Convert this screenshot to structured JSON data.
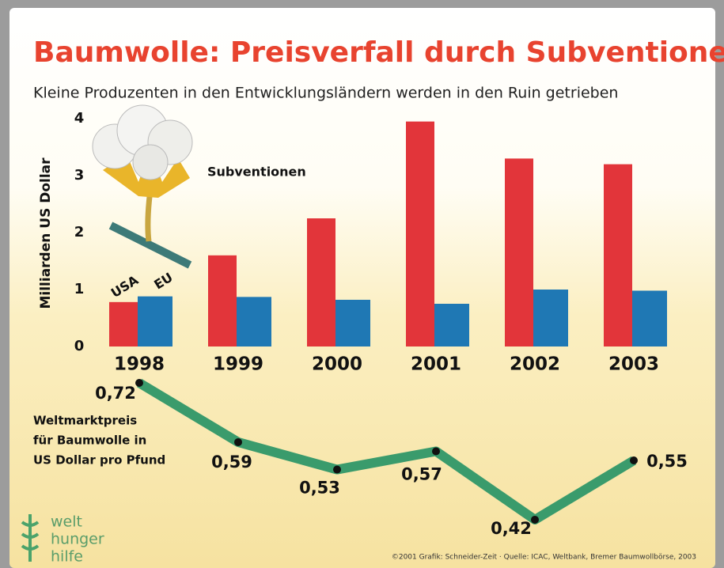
{
  "chart_data": [
    {
      "type": "bar",
      "title": "Baumwolle: Preisverfall durch Subventionen",
      "subtitle": "Kleine Produzenten in den Entwicklungsländern werden in den Ruin getrieben",
      "y_label": "Milliarden US Dollar",
      "annotation": "Subventionen",
      "categories": [
        "1998",
        "1999",
        "2000",
        "2001",
        "2002",
        "2003"
      ],
      "series": [
        {
          "name": "USA",
          "color": "#e2353a",
          "values": [
            0.78,
            1.6,
            2.25,
            3.95,
            3.3,
            3.2
          ]
        },
        {
          "name": "EU",
          "color": "#1f78b4",
          "values": [
            0.88,
            0.87,
            0.82,
            0.75,
            1.0,
            0.98
          ]
        }
      ],
      "ylim": [
        0,
        4
      ],
      "yticks": [
        0,
        1,
        2,
        3,
        4
      ]
    },
    {
      "type": "line",
      "annotation": [
        "Weltmarktpreis",
        "für Baumwolle in",
        "US Dollar pro Pfund"
      ],
      "color": "#3a9b6c",
      "values": [
        0.72,
        0.59,
        0.53,
        0.57,
        0.42,
        0.55
      ],
      "value_labels": [
        "0,72",
        "0,59",
        "0,53",
        "0,57",
        "0,42",
        "0,55"
      ],
      "ylim": [
        0.4,
        0.75
      ]
    }
  ],
  "logo": [
    "welt",
    "hunger",
    "hilfe"
  ],
  "source": "©2001 Grafik: Schneider-Zeit · Quelle: ICAC, Weltbank, Bremer Baumwollbörse, 2003"
}
